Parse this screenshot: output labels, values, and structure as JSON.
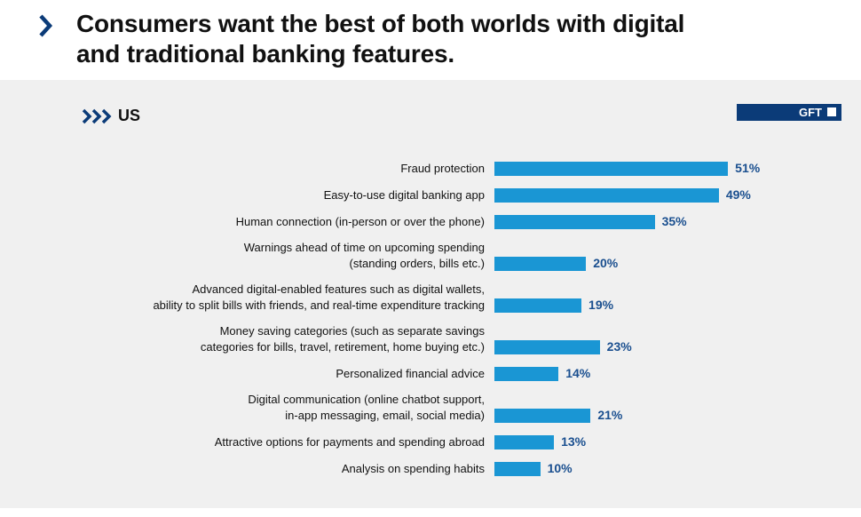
{
  "chart_data": {
    "type": "bar",
    "orientation": "horizontal",
    "title": "Consumers want the best of both worlds with digital\nand traditional banking features.",
    "subtitle": "US",
    "brand": "GFT",
    "color": "#1a96d4",
    "categories": [
      "Fraud protection",
      "Easy-to-use digital banking app",
      "Human connection (in-person or over the phone)",
      "Warnings ahead of time on upcoming spending\n(standing orders, bills etc.)",
      "Advanced digital-enabled features such as digital wallets,\nability to split bills with friends, and real-time expenditure tracking",
      "Money saving categories (such as separate savings\ncategories for bills, travel, retirement, home buying etc.)",
      "Personalized financial advice",
      "Digital communication (online chatbot support,\nin-app messaging, email, social media)",
      "Attractive options for payments and spending abroad",
      "Analysis on spending habits"
    ],
    "values": [
      51,
      49,
      35,
      20,
      19,
      23,
      14,
      21,
      13,
      10
    ],
    "value_labels": [
      "51%",
      "49%",
      "35%",
      "20%",
      "19%",
      "23%",
      "14%",
      "21%",
      "13%",
      "10%"
    ]
  }
}
